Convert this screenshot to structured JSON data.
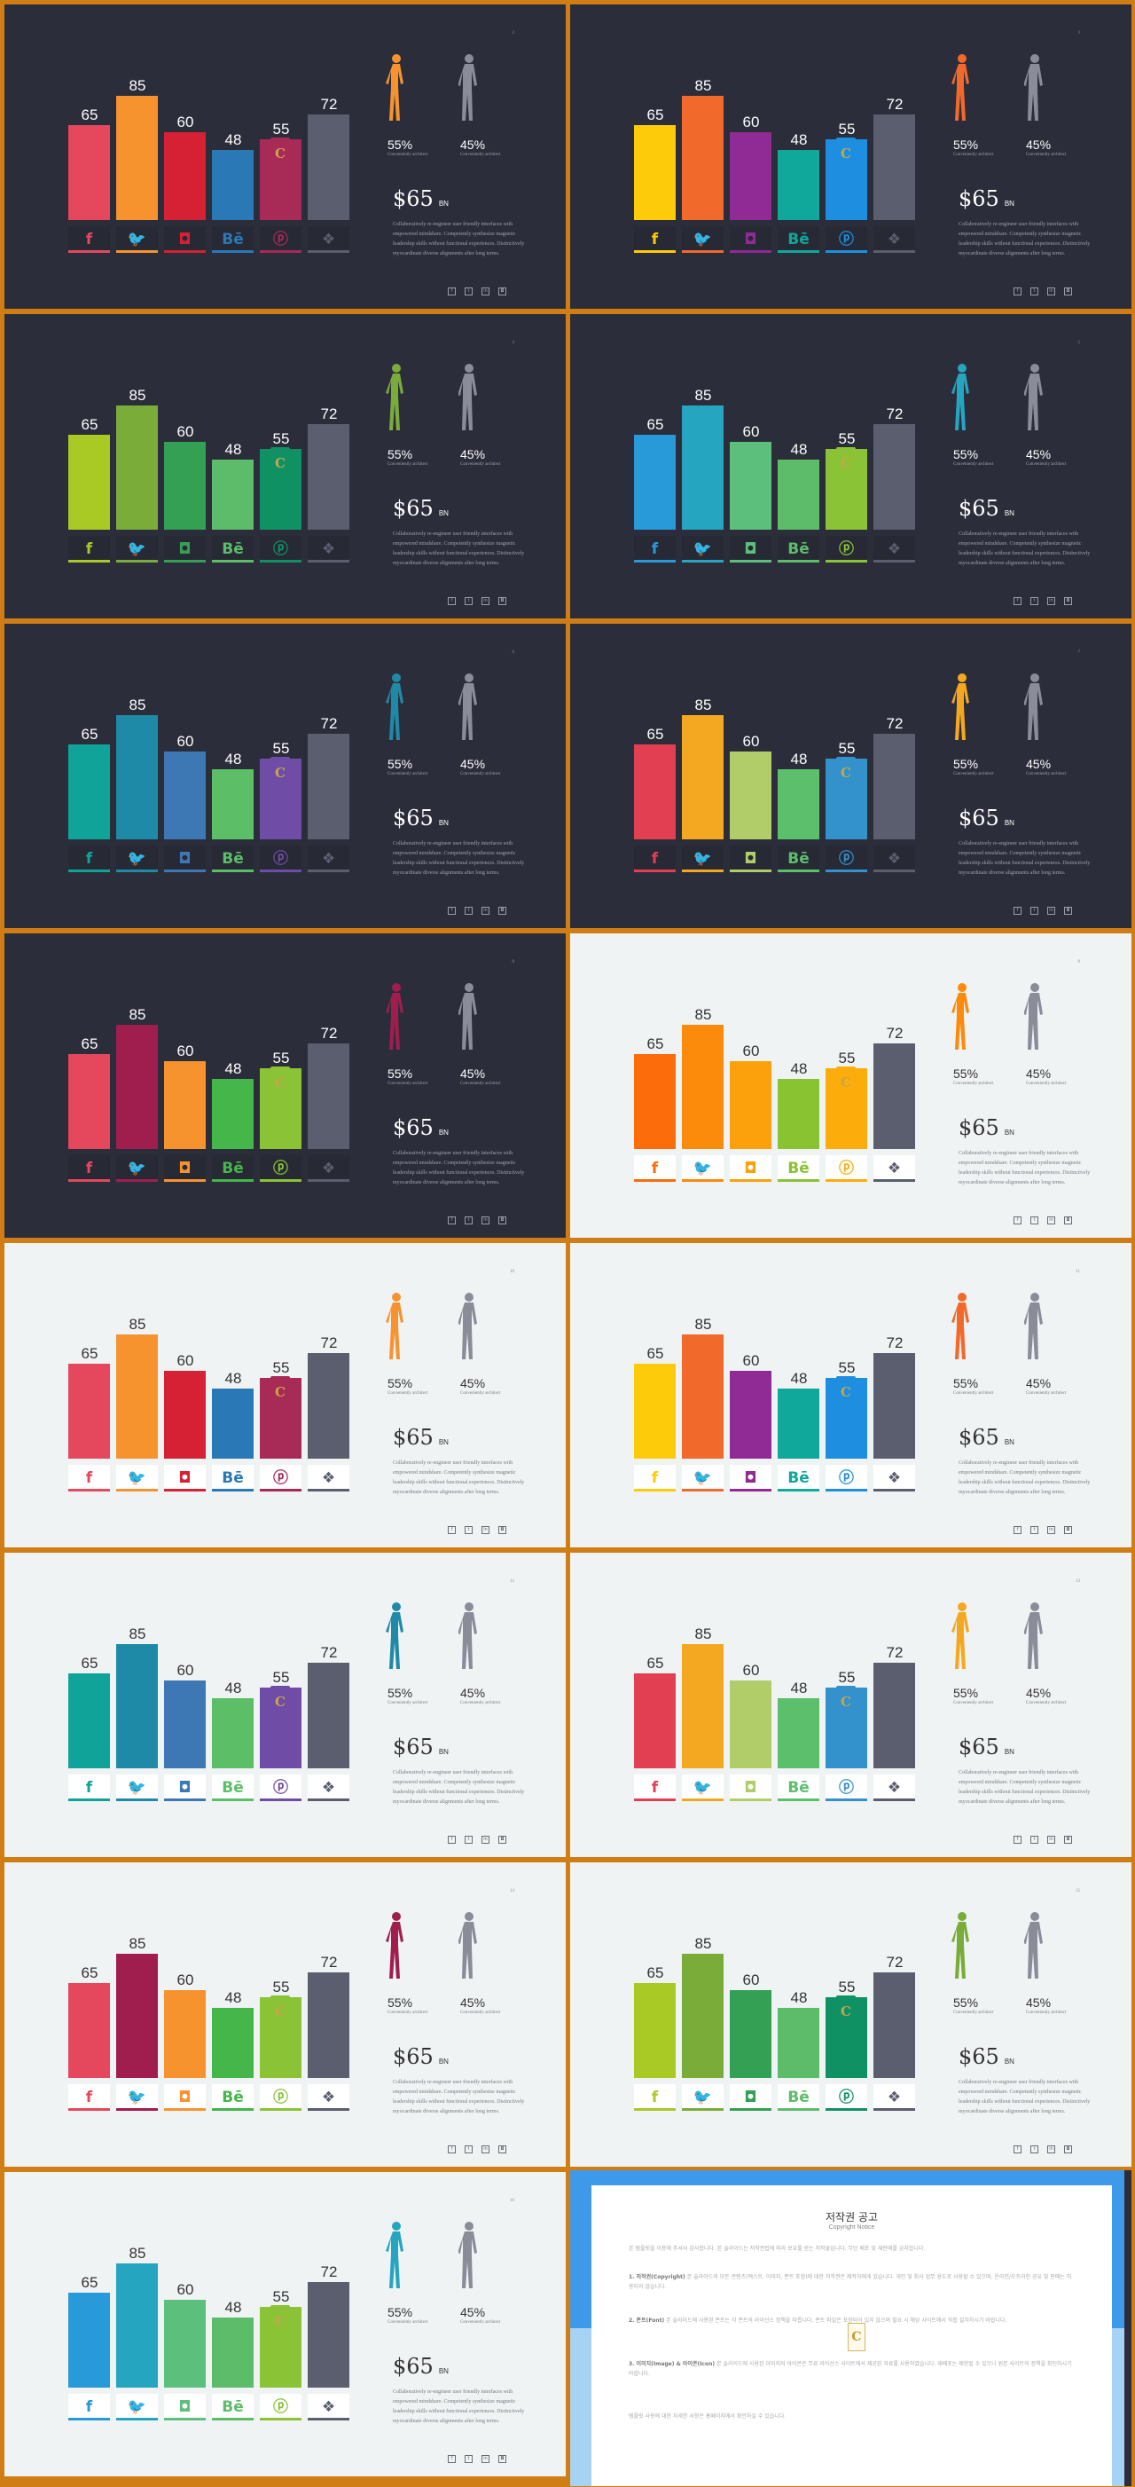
{
  "chart_data": {
    "type": "bar",
    "categories": [
      "facebook",
      "twitter",
      "instagram",
      "behance",
      "pinterest",
      "dropbox"
    ],
    "values": [
      65,
      85,
      60,
      48,
      55,
      72
    ],
    "ylim": [
      0,
      100
    ]
  },
  "labels": {
    "values": [
      "65",
      "85",
      "60",
      "48",
      "55",
      "72"
    ],
    "female_pct": "55%",
    "male_pct": "45%",
    "caption": "Conveniently architect",
    "price": "$65",
    "price_unit": "BN",
    "body": "Collaboratively re-engineer user friendly interfaces with empowered mindshare. Competently synthesize magnetic leadership skills without functional experiences. Distinctively myocardinate diverse alignments after long terms."
  },
  "icons": {
    "social": [
      "facebook-icon",
      "twitter-icon",
      "instagram-icon",
      "behance-icon",
      "pinterest-icon",
      "dropbox-icon"
    ],
    "glyphs": [
      "f",
      "🐦",
      "◘",
      "Bē",
      "ⓟ",
      "❖"
    ],
    "footer": [
      "f",
      "t",
      "in",
      "◘"
    ]
  },
  "slides": [
    {
      "theme": "dark",
      "page": "2",
      "colors": [
        "#e5485c",
        "#f7932f",
        "#d62033",
        "#2b78b6",
        "#a82a57",
        "#5a5e6e"
      ],
      "person": "#f7932f"
    },
    {
      "theme": "dark",
      "page": "3",
      "colors": [
        "#fdcb0a",
        "#f1692b",
        "#902a94",
        "#10a89a",
        "#1e8ee0",
        "#5a5e6e"
      ],
      "person": "#f1692b"
    },
    {
      "theme": "dark",
      "page": "4",
      "colors": [
        "#a9c924",
        "#7aac3a",
        "#33a054",
        "#5cbc6a",
        "#109164",
        "#5a5e6e"
      ],
      "person": "#7aac3a"
    },
    {
      "theme": "dark",
      "page": "5",
      "colors": [
        "#2899d9",
        "#25a5c0",
        "#5cc07c",
        "#5cbc6a",
        "#8ac336",
        "#5a5e6e"
      ],
      "person": "#25a5c0"
    },
    {
      "theme": "dark",
      "page": "6",
      "colors": [
        "#10a39a",
        "#1f8aa7",
        "#3d78b5",
        "#5cbf67",
        "#6f4ca5",
        "#5a5e6e"
      ],
      "person": "#1f8aa7"
    },
    {
      "theme": "dark",
      "page": "7",
      "colors": [
        "#e23f52",
        "#f4a821",
        "#b0cd6a",
        "#5bbf6b",
        "#3391cc",
        "#5a5e6e"
      ],
      "person": "#f4a821"
    },
    {
      "theme": "dark",
      "page": "8",
      "colors": [
        "#e5485c",
        "#9f1e4e",
        "#f7932f",
        "#45b649",
        "#8ac336",
        "#5a5e6e"
      ],
      "person": "#9f1e4e"
    },
    {
      "theme": "light",
      "page": "9",
      "colors": [
        "#fc6c0b",
        "#fc8a0b",
        "#fca10b",
        "#8ac331",
        "#fcad0b",
        "#5a5e6e"
      ],
      "person": "#fc8a0b"
    },
    {
      "theme": "light",
      "page": "10",
      "colors": [
        "#e5485c",
        "#f7932f",
        "#d62033",
        "#2b78b6",
        "#a82a57",
        "#5a5e6e"
      ],
      "person": "#f7932f"
    },
    {
      "theme": "light",
      "page": "11",
      "colors": [
        "#fdcb0a",
        "#f1692b",
        "#902a94",
        "#10a89a",
        "#1e8ee0",
        "#5a5e6e"
      ],
      "person": "#f1692b"
    },
    {
      "theme": "light",
      "page": "12",
      "colors": [
        "#10a39a",
        "#1f8aa7",
        "#3d78b5",
        "#5cbf67",
        "#6f4ca5",
        "#5a5e6e"
      ],
      "person": "#1f8aa7"
    },
    {
      "theme": "light",
      "page": "13",
      "colors": [
        "#e23f52",
        "#f4a821",
        "#b0cd6a",
        "#5bbf6b",
        "#3391cc",
        "#5a5e6e"
      ],
      "person": "#f4a821"
    },
    {
      "theme": "light",
      "page": "14",
      "colors": [
        "#e5485c",
        "#9f1e4e",
        "#f7932f",
        "#45b649",
        "#8ac336",
        "#5a5e6e"
      ],
      "person": "#9f1e4e"
    },
    {
      "theme": "light",
      "page": "15",
      "colors": [
        "#a9c924",
        "#7aac3a",
        "#33a054",
        "#5cbc6a",
        "#109164",
        "#5a5e6e"
      ],
      "person": "#7aac3a"
    },
    {
      "theme": "light",
      "page": "16",
      "colors": [
        "#2899d9",
        "#25a5c0",
        "#5cc07c",
        "#5cbc6a",
        "#8ac336",
        "#5a5e6e"
      ],
      "person": "#25a5c0"
    }
  ],
  "male_color": "#8a8c99",
  "notice": {
    "title": "저작권 공고",
    "subtitle": "Copyright Notice",
    "intro": "본 템플릿을 이용해 주셔서 감사합니다. 본 슬라이드는 저작권법에 따라 보호를 받는 저작물입니다. 무단 배포 및 재판매를 금지합니다.",
    "item1_label": "1. 저작권(Copyright)",
    "item1": " 본 슬라이드의 모든 콘텐츠(텍스트, 이미지, 폰트 포함)에 대한 저작권은 제작자에게 있습니다. 개인 및 회사 업무 용도로 사용할 수 있으며, 온라인/오프라인 공유 및 판매는 허용되지 않습니다.",
    "item2_label": "2. 폰트(Font)",
    "item2": " 본 슬라이드에 사용된 폰트는 각 폰트의 라이선스 정책을 따릅니다. 폰트 파일은 포함되어 있지 않으며 필요 시 해당 사이트에서 직접 설치하시기 바랍니다.",
    "item3_label": "3. 이미지(Image) & 아이콘(Icon)",
    "item3": " 본 슬라이드에 사용된 이미지와 아이콘은 무료 라이선스 사이트에서 제공된 자료를 사용하였습니다. 재배포는 제한될 수 있으니 원본 사이트의 정책을 확인하시기 바랍니다.",
    "outro": "템플릿 사용에 대한 자세한 사항은 홈페이지에서 확인하실 수 있습니다."
  }
}
